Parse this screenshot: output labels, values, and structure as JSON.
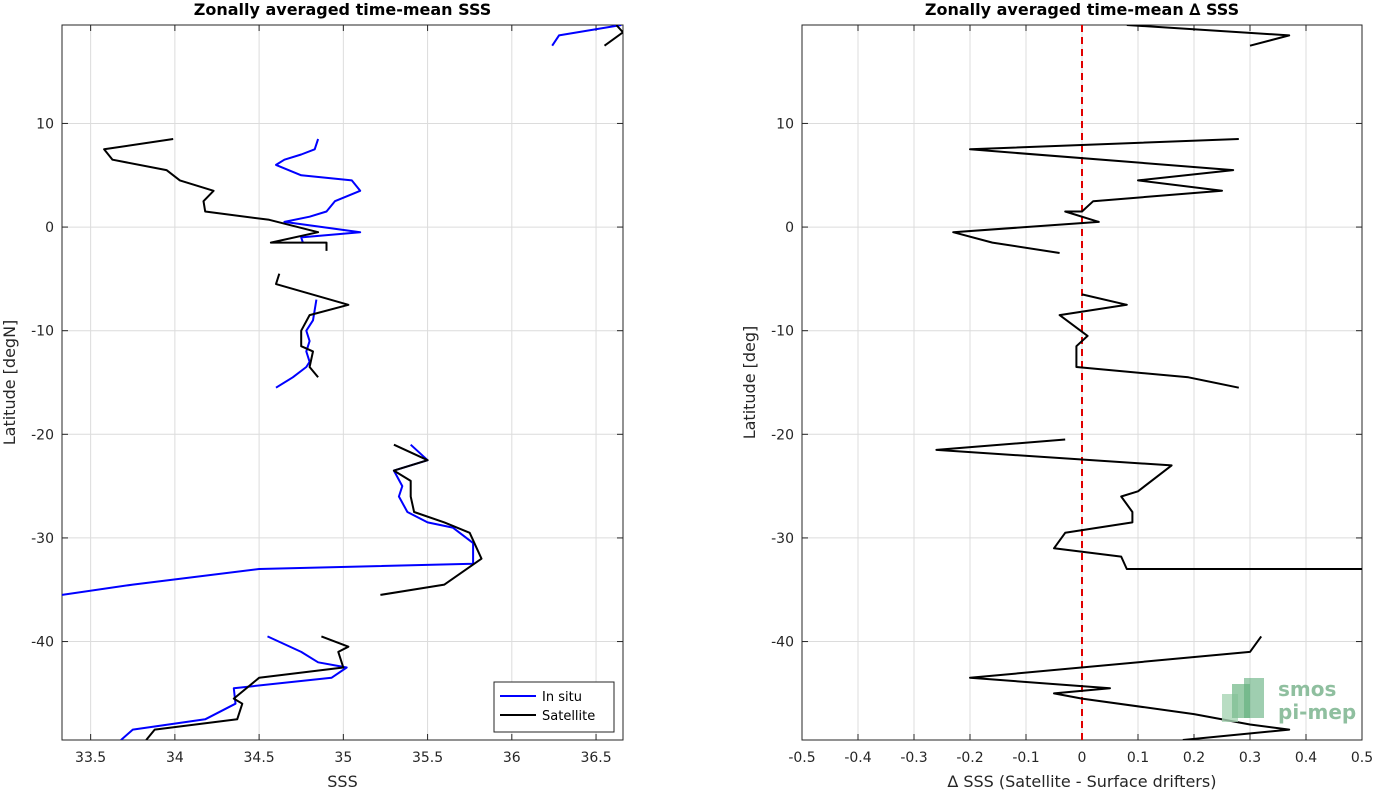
{
  "chart_data": [
    {
      "type": "line",
      "title": "Zonally averaged time-mean SSS",
      "xlabel": "SSS",
      "ylabel": "Latitude [degN]",
      "xlim": [
        33.33,
        36.66
      ],
      "ylim": [
        -49.5,
        19.5
      ],
      "xticks": [
        33.5,
        34,
        34.5,
        35,
        35.5,
        36,
        36.5
      ],
      "xtick_labels": [
        "33.5",
        "34",
        "34.5",
        "35",
        "35.5",
        "36",
        "36.5"
      ],
      "yticks": [
        -40,
        -30,
        -20,
        -10,
        0,
        10
      ],
      "ytick_labels": [
        "-40",
        "-30",
        "-20",
        "-10",
        "0",
        "10"
      ],
      "grid": true,
      "legend": "bottom-right",
      "series": [
        {
          "name": "In situ",
          "color": "#0000ff",
          "segments": [
            [
              [
                36.65,
                19.5
              ],
              [
                36.28,
                18.5
              ],
              [
                36.24,
                17.5
              ]
            ],
            [
              [
                34.85,
                8.5
              ],
              [
                34.83,
                7.5
              ],
              [
                34.75,
                7.0
              ],
              [
                34.65,
                6.5
              ],
              [
                34.6,
                6.0
              ],
              [
                34.75,
                5.0
              ],
              [
                35.05,
                4.5
              ],
              [
                35.1,
                3.5
              ],
              [
                34.95,
                2.5
              ],
              [
                34.9,
                1.5
              ],
              [
                34.8,
                1.0
              ],
              [
                34.65,
                0.5
              ],
              [
                35.1,
                -0.5
              ],
              [
                34.75,
                -1.0
              ],
              [
                34.76,
                -1.5
              ]
            ],
            [
              [
                34.84,
                -7.0
              ],
              [
                34.83,
                -8.0
              ],
              [
                34.82,
                -9.0
              ],
              [
                34.78,
                -10.0
              ],
              [
                34.8,
                -11.0
              ],
              [
                34.78,
                -12.0
              ],
              [
                34.8,
                -13.0
              ],
              [
                34.78,
                -13.5
              ],
              [
                34.7,
                -14.5
              ],
              [
                34.6,
                -15.5
              ]
            ],
            [
              [
                35.4,
                -21.0
              ],
              [
                35.5,
                -22.5
              ],
              [
                35.3,
                -23.5
              ],
              [
                35.35,
                -25.0
              ],
              [
                35.33,
                -26.0
              ],
              [
                35.38,
                -27.5
              ],
              [
                35.5,
                -28.5
              ],
              [
                35.65,
                -29.0
              ],
              [
                35.77,
                -30.5
              ],
              [
                35.77,
                -32.5
              ],
              [
                34.5,
                -33.0
              ],
              [
                33.75,
                -34.5
              ],
              [
                33.33,
                -35.5
              ]
            ],
            [
              [
                34.55,
                -39.5
              ],
              [
                34.75,
                -41.0
              ],
              [
                34.85,
                -42.0
              ],
              [
                35.02,
                -42.5
              ],
              [
                34.93,
                -43.5
              ],
              [
                34.35,
                -44.5
              ],
              [
                34.36,
                -46.0
              ],
              [
                34.18,
                -47.5
              ],
              [
                33.75,
                -48.5
              ],
              [
                33.68,
                -49.5
              ]
            ]
          ]
        },
        {
          "name": "Satellite",
          "color": "#000000",
          "segments": [
            [
              [
                36.55,
                17.5
              ],
              [
                36.66,
                18.8
              ],
              [
                36.62,
                19.5
              ]
            ],
            [
              [
                33.99,
                8.5
              ],
              [
                33.58,
                7.5
              ],
              [
                33.63,
                6.5
              ],
              [
                33.95,
                5.5
              ],
              [
                34.03,
                4.5
              ],
              [
                34.23,
                3.5
              ],
              [
                34.17,
                2.5
              ],
              [
                34.18,
                1.5
              ],
              [
                34.56,
                0.7
              ],
              [
                34.85,
                -0.5
              ],
              [
                34.57,
                -1.5
              ],
              [
                34.9,
                -1.5
              ],
              [
                34.9,
                -2.3
              ]
            ],
            [
              [
                34.62,
                -4.5
              ],
              [
                34.6,
                -5.5
              ],
              [
                35.03,
                -7.5
              ],
              [
                34.8,
                -8.5
              ],
              [
                34.75,
                -10.0
              ],
              [
                34.75,
                -11.5
              ],
              [
                34.82,
                -12.0
              ],
              [
                34.8,
                -13.5
              ],
              [
                34.85,
                -14.5
              ]
            ],
            [
              [
                35.3,
                -21.0
              ],
              [
                35.5,
                -22.5
              ],
              [
                35.3,
                -23.5
              ],
              [
                35.4,
                -24.5
              ],
              [
                35.4,
                -26.0
              ],
              [
                35.42,
                -27.5
              ],
              [
                35.6,
                -28.5
              ],
              [
                35.75,
                -29.5
              ],
              [
                35.82,
                -32.0
              ],
              [
                35.6,
                -34.5
              ],
              [
                35.22,
                -35.5
              ]
            ],
            [
              [
                34.87,
                -39.5
              ],
              [
                35.03,
                -40.5
              ],
              [
                34.97,
                -41.0
              ],
              [
                35.0,
                -42.5
              ],
              [
                34.5,
                -43.5
              ],
              [
                34.35,
                -45.5
              ],
              [
                34.4,
                -46.0
              ],
              [
                34.37,
                -47.5
              ],
              [
                33.88,
                -48.5
              ],
              [
                33.83,
                -49.5
              ]
            ]
          ]
        }
      ]
    },
    {
      "type": "line",
      "title": "Zonally averaged time-mean ∆ SSS",
      "xlabel": "∆ SSS (Satellite - Surface drifters)",
      "ylabel": "Latitude [deg]",
      "xlim": [
        -0.5,
        0.5
      ],
      "ylim": [
        -49.5,
        19.5
      ],
      "xticks": [
        -0.5,
        -0.4,
        -0.3,
        -0.2,
        -0.1,
        0,
        0.1,
        0.2,
        0.3,
        0.4,
        0.5
      ],
      "xtick_labels": [
        "-0.5",
        "-0.4",
        "-0.3",
        "-0.2",
        "-0.1",
        "0",
        "0.1",
        "0.2",
        "0.3",
        "0.4",
        "0.5"
      ],
      "yticks": [
        -40,
        -30,
        -20,
        -10,
        0,
        10
      ],
      "ytick_labels": [
        "-40",
        "-30",
        "-20",
        "-10",
        "0",
        "10"
      ],
      "grid": true,
      "reference_line": {
        "x": 0,
        "color": "#e00000",
        "style": "dashed"
      },
      "series": [
        {
          "color": "#000000",
          "segments": [
            [
              [
                0.08,
                19.5
              ],
              [
                0.37,
                18.5
              ],
              [
                0.3,
                17.5
              ]
            ],
            [
              [
                0.28,
                8.5
              ],
              [
                -0.2,
                7.5
              ],
              [
                0.27,
                5.5
              ],
              [
                0.1,
                4.5
              ],
              [
                0.25,
                3.5
              ],
              [
                0.02,
                2.5
              ],
              [
                0.0,
                1.5
              ],
              [
                -0.03,
                1.5
              ],
              [
                0.03,
                0.5
              ],
              [
                -0.23,
                -0.5
              ],
              [
                -0.16,
                -1.5
              ],
              [
                -0.04,
                -2.5
              ]
            ],
            [
              [
                0.0,
                -6.5
              ],
              [
                0.08,
                -7.5
              ],
              [
                -0.04,
                -8.5
              ],
              [
                0.01,
                -10.5
              ],
              [
                -0.01,
                -11.5
              ],
              [
                -0.01,
                -13.5
              ],
              [
                0.19,
                -14.5
              ],
              [
                0.28,
                -15.5
              ]
            ],
            [
              [
                -0.03,
                -20.5
              ],
              [
                -0.26,
                -21.5
              ],
              [
                0.16,
                -23.0
              ],
              [
                0.1,
                -25.5
              ],
              [
                0.07,
                -26.0
              ],
              [
                0.09,
                -27.5
              ],
              [
                0.09,
                -28.5
              ],
              [
                -0.03,
                -29.5
              ],
              [
                -0.05,
                -31.0
              ],
              [
                0.07,
                -31.8
              ],
              [
                0.08,
                -33.0
              ],
              [
                0.5,
                -33.0
              ]
            ],
            [
              [
                0.32,
                -39.5
              ],
              [
                0.3,
                -41.0
              ],
              [
                -0.2,
                -43.5
              ],
              [
                0.05,
                -44.5
              ],
              [
                -0.05,
                -45.0
              ],
              [
                0.0,
                -45.5
              ],
              [
                0.2,
                -47.0
              ],
              [
                0.3,
                -48.0
              ],
              [
                0.37,
                -48.5
              ],
              [
                0.18,
                -49.5
              ]
            ]
          ]
        }
      ]
    }
  ],
  "logo": {
    "line1": "smos",
    "line2": "pi-mep"
  }
}
